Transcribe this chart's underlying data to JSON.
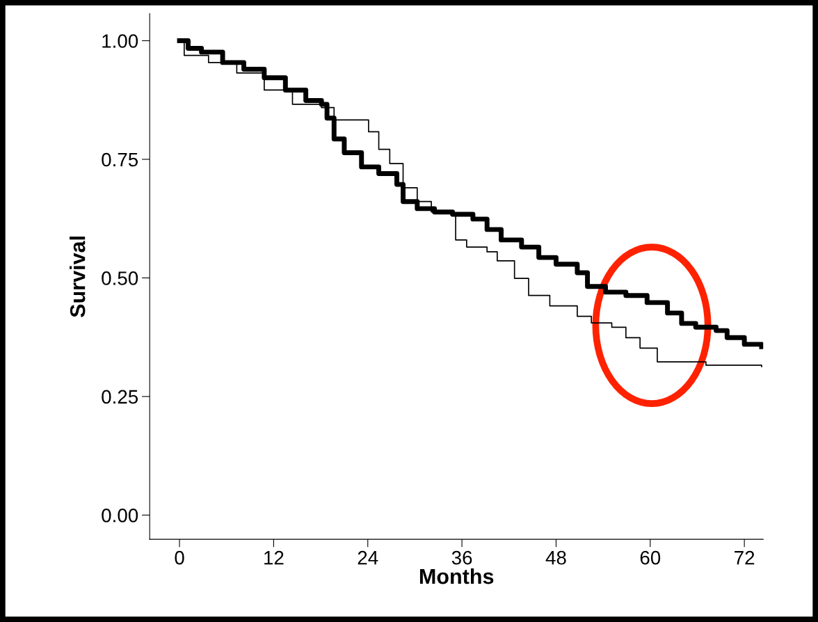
{
  "chart_data": {
    "type": "step",
    "xlabel": "Months",
    "ylabel": "Survival",
    "xlim": [
      -3.8,
      74.4
    ],
    "ylim": [
      -0.051,
      1.057
    ],
    "xticks": [
      0,
      12,
      24,
      36,
      48,
      60,
      72
    ],
    "yticks": [
      {
        "value": 0,
        "label": "0.00"
      },
      {
        "value": 0.25,
        "label": "0.25"
      },
      {
        "value": 0.5,
        "label": "0.50"
      },
      {
        "value": 0.75,
        "label": "0.75"
      },
      {
        "value": 1,
        "label": "1.00"
      }
    ],
    "grid": false,
    "legend": false,
    "series": [
      {
        "color": "#000000",
        "x": [
          0,
          1.1,
          2.8,
          5.5,
          8.2,
          10.8,
          13.5,
          16.1,
          18.1,
          18.8,
          19.7,
          21.0,
          23.2,
          25.4,
          27.7,
          28.5,
          30.3,
          32.5,
          34.8,
          37.4,
          39.2,
          41.0,
          43.6,
          45.8,
          48.0,
          50.7,
          52.0,
          54.3,
          56.9,
          59.6,
          62.2,
          64.0,
          65.8,
          68.4,
          69.8,
          72.0,
          74.2
        ],
        "values": [
          1.0,
          0.984,
          0.976,
          0.954,
          0.94,
          0.922,
          0.896,
          0.874,
          0.866,
          0.837,
          0.793,
          0.764,
          0.734,
          0.72,
          0.697,
          0.661,
          0.646,
          0.639,
          0.634,
          0.624,
          0.602,
          0.58,
          0.565,
          0.543,
          0.529,
          0.511,
          0.482,
          0.47,
          0.463,
          0.448,
          0.426,
          0.404,
          0.396,
          0.389,
          0.374,
          0.36,
          0.355
        ]
      },
      {
        "color": "#000000",
        "x": [
          0,
          0.6,
          3.7,
          7.3,
          10.8,
          14.4,
          18.1,
          19.7,
          23.2,
          24.1,
          25.4,
          26.8,
          28.5,
          30.3,
          32.1,
          34.8,
          35.2,
          36.6,
          39.2,
          40.5,
          42.7,
          44.5,
          47.2,
          50.7,
          52.5,
          55.1,
          56.9,
          58.7,
          60.9,
          67.1,
          74.2
        ],
        "values": [
          1.0,
          0.969,
          0.954,
          0.932,
          0.896,
          0.866,
          0.859,
          0.833,
          0.833,
          0.808,
          0.771,
          0.741,
          0.69,
          0.661,
          0.639,
          0.631,
          0.58,
          0.565,
          0.555,
          0.536,
          0.499,
          0.463,
          0.441,
          0.419,
          0.405,
          0.396,
          0.374,
          0.352,
          0.323,
          0.316,
          0.313
        ]
      }
    ]
  }
}
